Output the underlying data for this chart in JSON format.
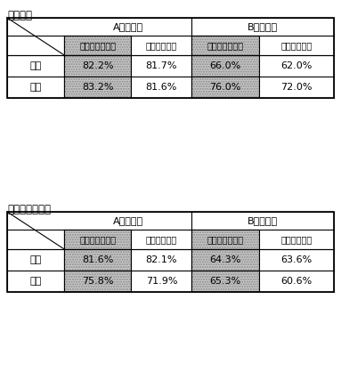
{
  "title1_display": "【国語】",
  "title2_display": "【算数・数学】",
  "header_A": "A（知識）",
  "header_B": "B（活用）",
  "subheader_gifu": "岐逃県（公立）",
  "subheader_zen": "全国（公立）",
  "row_labels": [
    "小６",
    "中３"
  ],
  "table1_data": [
    [
      "82.2%",
      "81.7%",
      "66.0%",
      "62.0%"
    ],
    [
      "83.2%",
      "81.6%",
      "76.0%",
      "72.0%"
    ]
  ],
  "table2_data": [
    [
      "81.6%",
      "82.1%",
      "64.3%",
      "63.6%"
    ],
    [
      "75.8%",
      "71.9%",
      "65.3%",
      "60.6%"
    ]
  ],
  "shaded_color": "#c8c8c8",
  "bg_color": "#ffffff",
  "text_color": "#000000",
  "border_color": "#000000",
  "font_size_title": 8.5,
  "font_size_header1": 8,
  "font_size_header2": 7,
  "font_size_data": 8,
  "font_size_label": 8
}
